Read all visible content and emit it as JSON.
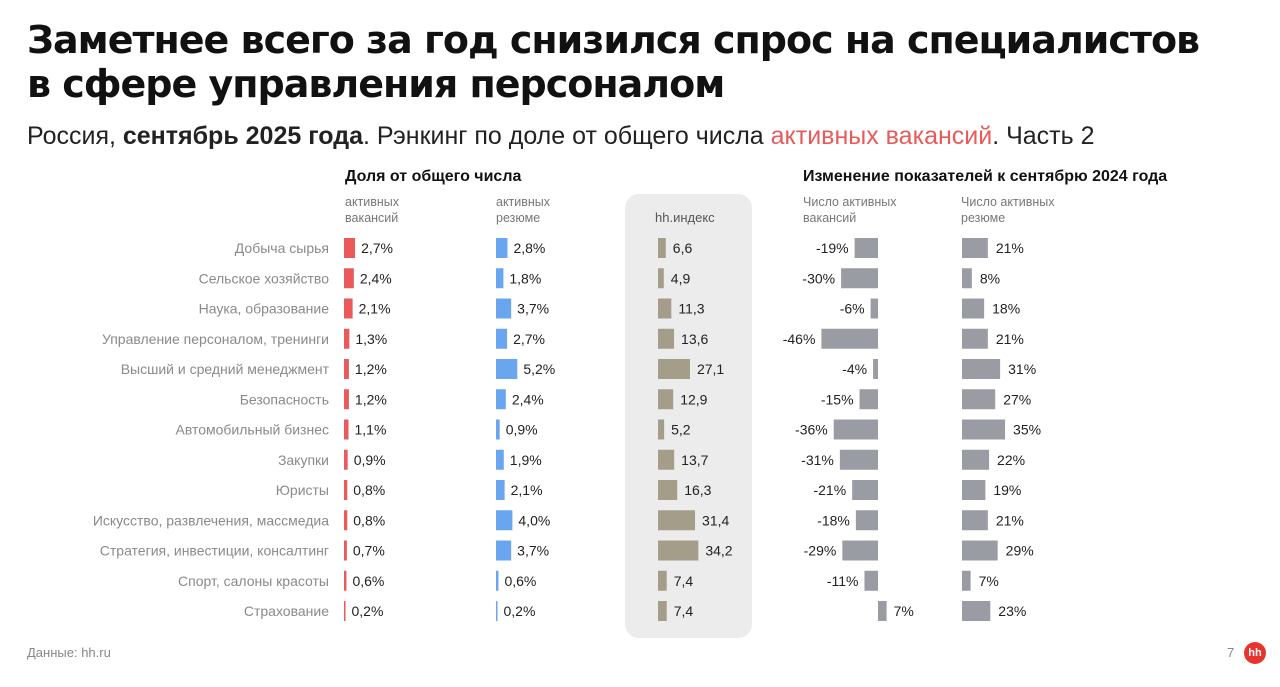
{
  "title_line1": "Заметнее всего за год снизился спрос на специалистов",
  "title_line2": "в сфере управления персоналом",
  "subtitle": {
    "part1": "Россия, ",
    "bold": "сентябрь 2025 года",
    "part2": ". Рэнкинг по доле от общего числа ",
    "highlight": "активных вакансий",
    "part3": ". Часть 2"
  },
  "headers": {
    "share": "Доля от общего числа",
    "share_vac_1": "активных",
    "share_vac_2": "вакансий",
    "share_res_1": "активных",
    "share_res_2": "резюме",
    "index": "hh.индекс",
    "change": "Изменение показателей к сентябрю 2024 года",
    "change_vac_1": "Число активных",
    "change_vac_2": "вакансий",
    "change_res_1": "Число активных",
    "change_res_2": "резюме"
  },
  "footer": {
    "source": "Данные: hh.ru",
    "page": "7",
    "logo": "hh"
  },
  "colors": {
    "vacancies": "#ea5a5a",
    "resumes": "#6aa6f0",
    "index": "#a39d8a",
    "change": "#9a9ca4",
    "highlight": "#ea5a5a"
  },
  "chart_data": {
    "type": "bar",
    "categories": [
      "Добыча сырья",
      "Сельское хозяйство",
      "Наука, образование",
      "Управление персоналом, тренинги",
      "Высший и средний менеджмент",
      "Безопасность",
      "Автомобильный бизнес",
      "Закупки",
      "Юристы",
      "Искусство, развлечения, массмедиа",
      "Стратегия, инвестиции, консалтинг",
      "Спорт, салоны красоты",
      "Страхование"
    ],
    "series": [
      {
        "name": "активных вакансий",
        "unit": "%",
        "values": [
          2.7,
          2.4,
          2.1,
          1.3,
          1.2,
          1.2,
          1.1,
          0.9,
          0.8,
          0.8,
          0.7,
          0.6,
          0.2
        ]
      },
      {
        "name": "активных резюме",
        "unit": "%",
        "values": [
          2.8,
          1.8,
          3.7,
          2.7,
          5.2,
          2.4,
          0.9,
          1.9,
          2.1,
          4.0,
          3.7,
          0.6,
          0.2
        ]
      },
      {
        "name": "hh.индекс",
        "values": [
          6.6,
          4.9,
          11.3,
          13.6,
          27.1,
          12.9,
          5.2,
          13.7,
          16.3,
          31.4,
          34.2,
          7.4,
          7.4
        ]
      },
      {
        "name": "Число активных вакансий",
        "unit": "%",
        "values": [
          -19,
          -30,
          -6,
          -46,
          -4,
          -15,
          -36,
          -31,
          -21,
          -18,
          -29,
          -11,
          7
        ]
      },
      {
        "name": "Число активных резюме",
        "unit": "%",
        "values": [
          21,
          8,
          18,
          21,
          31,
          27,
          35,
          22,
          19,
          21,
          29,
          7,
          23
        ]
      }
    ]
  }
}
